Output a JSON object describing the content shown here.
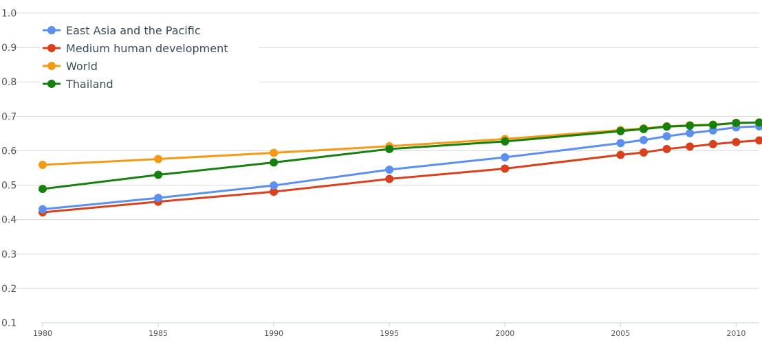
{
  "chart_data": {
    "type": "line",
    "x": [
      1980,
      1985,
      1990,
      1995,
      2000,
      2005,
      2006,
      2007,
      2008,
      2009,
      2010,
      2011
    ],
    "x_ticks": [
      "1980",
      "1985",
      "1990",
      "1995",
      "2000",
      "2005",
      "2010"
    ],
    "y_ticks": [
      "0.1",
      "0.2",
      "0.3",
      "0.4",
      "0.5",
      "0.6",
      "0.7",
      "0.8",
      "0.9",
      "1.0"
    ],
    "ylim": [
      0.1,
      1.0
    ],
    "grid": true,
    "legend_position": "top-left",
    "series": [
      {
        "name": "East Asia and the Pacific",
        "color": "#5b8ff0",
        "values": [
          0.43,
          0.463,
          0.499,
          0.545,
          0.581,
          0.622,
          0.631,
          0.642,
          0.651,
          0.659,
          0.668,
          0.671
        ]
      },
      {
        "name": "Medium human development",
        "color": "#d9401e",
        "values": [
          0.421,
          0.452,
          0.481,
          0.518,
          0.548,
          0.588,
          0.595,
          0.605,
          0.612,
          0.619,
          0.625,
          0.63
        ]
      },
      {
        "name": "World",
        "color": "#f59a15",
        "values": [
          0.559,
          0.576,
          0.594,
          0.613,
          0.634,
          0.66,
          0.665,
          0.671,
          0.674,
          0.676,
          0.68,
          0.682
        ]
      },
      {
        "name": "Thailand",
        "color": "#16800e",
        "values": [
          0.489,
          0.53,
          0.566,
          0.605,
          0.627,
          0.657,
          0.663,
          0.67,
          0.673,
          0.675,
          0.681,
          0.682
        ]
      }
    ]
  }
}
